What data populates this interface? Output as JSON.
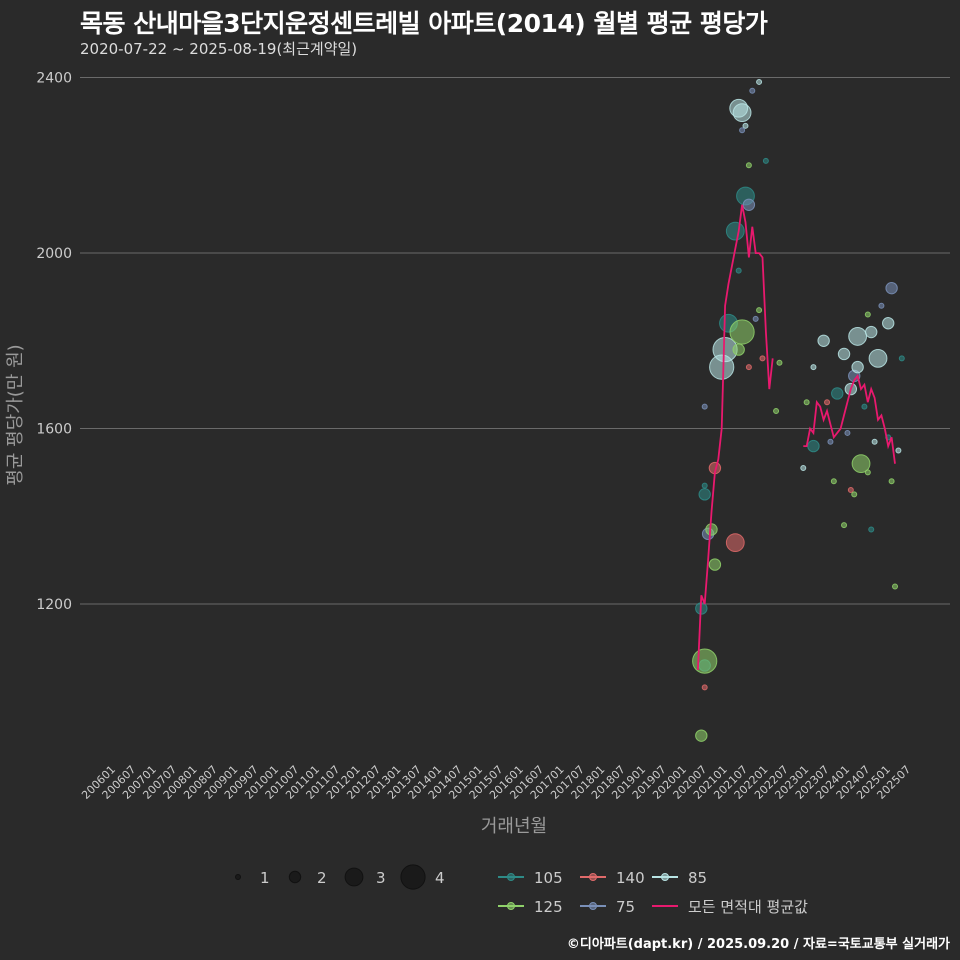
{
  "title": "목동 산내마을3단지운정센트레빌 아파트(2014) 월별 평균 평당가",
  "subtitle": "2020-07-22 ~ 2025-08-19(최근계약일)",
  "caption": "©디아파트(dapt.kr) / 2025.09.20 / 자료=국토교통부 실거래가",
  "chart_data": {
    "type": "scatter",
    "title": "목동 산내마을3단지운정센트레빌 아파트(2014) 월별 평균 평당가",
    "xlabel": "거래년월",
    "ylabel": "평균 평당가(만 원)",
    "ylim": [
      840,
      2440
    ],
    "yticks": [
      1200,
      1600,
      2000,
      2400
    ],
    "ytick_labels": [
      "1200",
      "1600",
      "2000",
      "2400"
    ],
    "x_start": "2006-01",
    "x_end": "2025-09",
    "xtick_labels": [
      "200601",
      "200607",
      "200701",
      "200707",
      "200801",
      "200807",
      "200901",
      "200907",
      "201001",
      "201007",
      "201101",
      "201107",
      "201201",
      "201207",
      "201301",
      "201307",
      "201401",
      "201407",
      "201501",
      "201507",
      "201601",
      "201607",
      "201701",
      "201707",
      "201801",
      "201807",
      "201901",
      "201907",
      "202001",
      "202007",
      "202101",
      "202107",
      "202201",
      "202207",
      "202301",
      "202307",
      "202401",
      "202407",
      "202501",
      "202507"
    ],
    "colors": {
      "105": "#2e8b87",
      "125": "#8fd16a",
      "140": "#e06a6a",
      "75": "#7a90b8",
      "85": "#b8e4e4",
      "avg": "#e8196e"
    },
    "size_legend": {
      "values": [
        1,
        2,
        3,
        4
      ],
      "labels": [
        "1",
        "2",
        "3",
        "4"
      ]
    },
    "series_legend": [
      {
        "key": "105",
        "label": "105"
      },
      {
        "key": "140",
        "label": "140"
      },
      {
        "key": "85",
        "label": "85"
      },
      {
        "key": "125",
        "label": "125"
      },
      {
        "key": "75",
        "label": "75"
      },
      {
        "key": "avg",
        "label": "모든 면적대 평균값"
      }
    ],
    "points": [
      {
        "d": "2020-07",
        "y": 1190,
        "a": "105",
        "n": 2
      },
      {
        "d": "2020-08",
        "y": 1060,
        "a": "105",
        "n": 2
      },
      {
        "d": "2020-08",
        "y": 1070,
        "a": "125",
        "n": 4
      },
      {
        "d": "2020-08",
        "y": 1010,
        "a": "140",
        "n": 1
      },
      {
        "d": "2020-07",
        "y": 900,
        "a": "125",
        "n": 2
      },
      {
        "d": "2020-08",
        "y": 1450,
        "a": "105",
        "n": 2
      },
      {
        "d": "2020-09",
        "y": 1360,
        "a": "75",
        "n": 2
      },
      {
        "d": "2020-10",
        "y": 1370,
        "a": "125",
        "n": 2
      },
      {
        "d": "2020-11",
        "y": 1290,
        "a": "125",
        "n": 2
      },
      {
        "d": "2020-11",
        "y": 1510,
        "a": "140",
        "n": 2
      },
      {
        "d": "2020-08",
        "y": 1650,
        "a": "75",
        "n": 1
      },
      {
        "d": "2020-08",
        "y": 1470,
        "a": "105",
        "n": 1
      },
      {
        "d": "2021-01",
        "y": 1740,
        "a": "85",
        "n": 4
      },
      {
        "d": "2021-02",
        "y": 1780,
        "a": "85",
        "n": 4
      },
      {
        "d": "2021-03",
        "y": 1840,
        "a": "105",
        "n": 3
      },
      {
        "d": "2021-05",
        "y": 1340,
        "a": "140",
        "n": 3
      },
      {
        "d": "2021-05",
        "y": 2050,
        "a": "105",
        "n": 3
      },
      {
        "d": "2021-06",
        "y": 1780,
        "a": "125",
        "n": 2
      },
      {
        "d": "2021-07",
        "y": 1820,
        "a": "125",
        "n": 4
      },
      {
        "d": "2021-06",
        "y": 2330,
        "a": "85",
        "n": 3
      },
      {
        "d": "2021-07",
        "y": 2320,
        "a": "85",
        "n": 3
      },
      {
        "d": "2021-08",
        "y": 2130,
        "a": "105",
        "n": 3
      },
      {
        "d": "2021-09",
        "y": 2110,
        "a": "75",
        "n": 2
      },
      {
        "d": "2021-08",
        "y": 2290,
        "a": "85",
        "n": 1
      },
      {
        "d": "2021-07",
        "y": 2280,
        "a": "75",
        "n": 1
      },
      {
        "d": "2021-09",
        "y": 2200,
        "a": "125",
        "n": 1
      },
      {
        "d": "2021-10",
        "y": 2370,
        "a": "75",
        "n": 1
      },
      {
        "d": "2021-12",
        "y": 2390,
        "a": "85",
        "n": 1
      },
      {
        "d": "2022-02",
        "y": 2210,
        "a": "105",
        "n": 1
      },
      {
        "d": "2021-06",
        "y": 1960,
        "a": "105",
        "n": 1
      },
      {
        "d": "2021-09",
        "y": 1740,
        "a": "140",
        "n": 1
      },
      {
        "d": "2021-12",
        "y": 1870,
        "a": "125",
        "n": 1
      },
      {
        "d": "2022-01",
        "y": 1760,
        "a": "140",
        "n": 1
      },
      {
        "d": "2021-11",
        "y": 1850,
        "a": "75",
        "n": 1
      },
      {
        "d": "2022-05",
        "y": 1640,
        "a": "125",
        "n": 1
      },
      {
        "d": "2022-06",
        "y": 1750,
        "a": "125",
        "n": 1
      },
      {
        "d": "2023-01",
        "y": 1510,
        "a": "85",
        "n": 1
      },
      {
        "d": "2023-02",
        "y": 1660,
        "a": "125",
        "n": 1
      },
      {
        "d": "2023-04",
        "y": 1560,
        "a": "105",
        "n": 2
      },
      {
        "d": "2023-04",
        "y": 1740,
        "a": "85",
        "n": 1
      },
      {
        "d": "2023-07",
        "y": 1800,
        "a": "85",
        "n": 2
      },
      {
        "d": "2023-08",
        "y": 1660,
        "a": "140",
        "n": 1
      },
      {
        "d": "2023-09",
        "y": 1570,
        "a": "75",
        "n": 1
      },
      {
        "d": "2023-10",
        "y": 1480,
        "a": "125",
        "n": 1
      },
      {
        "d": "2023-11",
        "y": 1680,
        "a": "105",
        "n": 2
      },
      {
        "d": "2024-01",
        "y": 1770,
        "a": "85",
        "n": 2
      },
      {
        "d": "2024-02",
        "y": 1590,
        "a": "75",
        "n": 1
      },
      {
        "d": "2024-03",
        "y": 1460,
        "a": "140",
        "n": 1
      },
      {
        "d": "2024-03",
        "y": 1690,
        "a": "85",
        "n": 2
      },
      {
        "d": "2024-04",
        "y": 1720,
        "a": "75",
        "n": 2
      },
      {
        "d": "2024-05",
        "y": 1740,
        "a": "85",
        "n": 2
      },
      {
        "d": "2024-05",
        "y": 1810,
        "a": "85",
        "n": 3
      },
      {
        "d": "2024-06",
        "y": 1520,
        "a": "125",
        "n": 3
      },
      {
        "d": "2024-07",
        "y": 1650,
        "a": "105",
        "n": 1
      },
      {
        "d": "2024-08",
        "y": 1860,
        "a": "125",
        "n": 1
      },
      {
        "d": "2024-09",
        "y": 1820,
        "a": "85",
        "n": 2
      },
      {
        "d": "2024-11",
        "y": 1760,
        "a": "85",
        "n": 3
      },
      {
        "d": "2024-12",
        "y": 1880,
        "a": "75",
        "n": 1
      },
      {
        "d": "2025-02",
        "y": 1840,
        "a": "85",
        "n": 2
      },
      {
        "d": "2025-03",
        "y": 1920,
        "a": "75",
        "n": 2
      },
      {
        "d": "2025-02",
        "y": 1580,
        "a": "105",
        "n": 1
      },
      {
        "d": "2025-03",
        "y": 1480,
        "a": "125",
        "n": 1
      },
      {
        "d": "2025-04",
        "y": 1240,
        "a": "125",
        "n": 1
      },
      {
        "d": "2025-06",
        "y": 1760,
        "a": "105",
        "n": 1
      },
      {
        "d": "2024-09",
        "y": 1370,
        "a": "105",
        "n": 1
      },
      {
        "d": "2024-08",
        "y": 1500,
        "a": "125",
        "n": 1
      },
      {
        "d": "2024-01",
        "y": 1380,
        "a": "125",
        "n": 1
      },
      {
        "d": "2024-04",
        "y": 1450,
        "a": "125",
        "n": 1
      },
      {
        "d": "2024-10",
        "y": 1570,
        "a": "85",
        "n": 1
      },
      {
        "d": "2025-05",
        "y": 1550,
        "a": "85",
        "n": 1
      }
    ],
    "avg_series": [
      {
        "d": "2020-06",
        "y": 1050
      },
      {
        "d": "2020-07",
        "y": 1220
      },
      {
        "d": "2020-08",
        "y": 1200
      },
      {
        "d": "2020-09",
        "y": 1300
      },
      {
        "d": "2020-10",
        "y": 1410
      },
      {
        "d": "2020-11",
        "y": 1500
      },
      {
        "d": "2020-12",
        "y": 1530
      },
      {
        "d": "2021-01",
        "y": 1600
      },
      {
        "d": "2021-02",
        "y": 1880
      },
      {
        "d": "2021-03",
        "y": 1930
      },
      {
        "d": "2021-04",
        "y": 1970
      },
      {
        "d": "2021-05",
        "y": 2010
      },
      {
        "d": "2021-06",
        "y": 2050
      },
      {
        "d": "2021-07",
        "y": 2110
      },
      {
        "d": "2021-08",
        "y": 2070
      },
      {
        "d": "2021-09",
        "y": 1990
      },
      {
        "d": "2021-10",
        "y": 2060
      },
      {
        "d": "2021-11",
        "y": 2000
      },
      {
        "d": "2021-12",
        "y": 2000
      },
      {
        "d": "2022-01",
        "y": 1990
      },
      {
        "d": "2022-02",
        "y": 1820
      },
      {
        "d": "2022-03",
        "y": 1690
      },
      {
        "d": "2022-04",
        "y": 1760
      },
      {
        "d": "2023-01",
        "y": 1560
      },
      {
        "d": "2023-02",
        "y": 1560
      },
      {
        "d": "2023-03",
        "y": 1600
      },
      {
        "d": "2023-04",
        "y": 1590
      },
      {
        "d": "2023-05",
        "y": 1660
      },
      {
        "d": "2023-06",
        "y": 1650
      },
      {
        "d": "2023-07",
        "y": 1620
      },
      {
        "d": "2023-08",
        "y": 1640
      },
      {
        "d": "2023-09",
        "y": 1610
      },
      {
        "d": "2023-10",
        "y": 1580
      },
      {
        "d": "2023-11",
        "y": 1590
      },
      {
        "d": "2023-12",
        "y": 1600
      },
      {
        "d": "2024-01",
        "y": 1630
      },
      {
        "d": "2024-02",
        "y": 1660
      },
      {
        "d": "2024-03",
        "y": 1690
      },
      {
        "d": "2024-04",
        "y": 1710
      },
      {
        "d": "2024-05",
        "y": 1720
      },
      {
        "d": "2024-06",
        "y": 1690
      },
      {
        "d": "2024-07",
        "y": 1700
      },
      {
        "d": "2024-08",
        "y": 1660
      },
      {
        "d": "2024-09",
        "y": 1690
      },
      {
        "d": "2024-10",
        "y": 1670
      },
      {
        "d": "2024-11",
        "y": 1620
      },
      {
        "d": "2024-12",
        "y": 1630
      },
      {
        "d": "2025-01",
        "y": 1600
      },
      {
        "d": "2025-02",
        "y": 1560
      },
      {
        "d": "2025-03",
        "y": 1580
      },
      {
        "d": "2025-04",
        "y": 1520
      }
    ]
  }
}
